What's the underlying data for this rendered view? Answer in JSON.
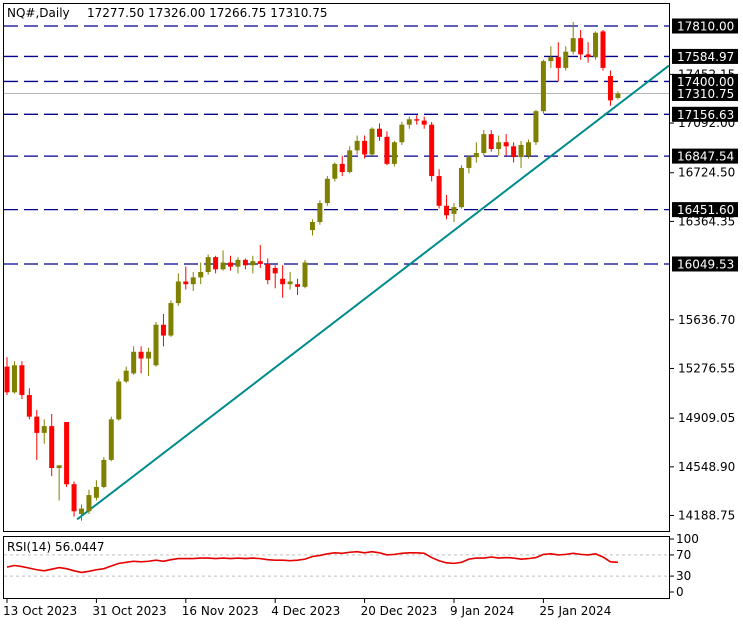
{
  "header": {
    "symbol": "NQ#,Daily",
    "ohlc": "17277.50 17326.00 17266.75 17310.75"
  },
  "rsi": {
    "label": "RSI(14) 56.0447",
    "levels": [
      100,
      70,
      30,
      0
    ],
    "level_labels": [
      "100",
      "70",
      "30",
      "0"
    ],
    "reference_lines": [
      70,
      30
    ]
  },
  "colors": {
    "bull": "#808000",
    "bear": "#ff0000",
    "trendline": "#008b8b",
    "hline": "#00008b",
    "rsi_line": "#e60000",
    "price_label_bg": "#000000"
  },
  "chart_data": {
    "type": "candlestick",
    "title": "NQ#,Daily",
    "ylim": [
      14050,
      17900
    ],
    "y_ticks": [
      14188.75,
      14548.9,
      14909.05,
      15276.55,
      15636.7,
      16364.35,
      16724.5,
      17092.0,
      17452.15
    ],
    "y_tick_labels": [
      "14188.75",
      "14548.90",
      "14909.05",
      "15276.55",
      "15636.70",
      "16364.35",
      "16724.50",
      "17092.00",
      "17452.15"
    ],
    "x_tick_labels": [
      "13 Oct 2023",
      "31 Oct 2023",
      "16 Nov 2023",
      "4 Dec 2023",
      "20 Dec 2023",
      "9 Jan 2024",
      "25 Jan 2024"
    ],
    "x_tick_index": [
      0,
      12,
      24,
      36,
      48,
      60,
      72
    ],
    "horizontal_levels": [
      {
        "value": 17810.0,
        "label": "17810.00"
      },
      {
        "value": 17584.97,
        "label": "17584.97"
      },
      {
        "value": 17400.0,
        "label": "17400.00"
      },
      {
        "value": 17156.63,
        "label": "17156.63"
      },
      {
        "value": 16847.54,
        "label": "16847.54"
      },
      {
        "value": 16451.6,
        "label": "16451.60"
      },
      {
        "value": 16049.53,
        "label": "16049.53"
      }
    ],
    "current_price": {
      "value": 17310.75,
      "label": "17310.75"
    },
    "trendline": [
      {
        "i": 9,
        "price": 14160
      },
      {
        "i": 89,
        "price": 17540
      }
    ],
    "candles": [
      {
        "o": 15290,
        "h": 15360,
        "l": 15080,
        "c": 15100
      },
      {
        "o": 15100,
        "h": 15330,
        "l": 15090,
        "c": 15300
      },
      {
        "o": 15300,
        "h": 15330,
        "l": 15050,
        "c": 15080
      },
      {
        "o": 15080,
        "h": 15130,
        "l": 14900,
        "c": 14920
      },
      {
        "o": 14920,
        "h": 14970,
        "l": 14600,
        "c": 14800
      },
      {
        "o": 14800,
        "h": 14900,
        "l": 14720,
        "c": 14850
      },
      {
        "o": 14850,
        "h": 14940,
        "l": 14480,
        "c": 14540
      },
      {
        "o": 14540,
        "h": 14560,
        "l": 14300,
        "c": 14560
      },
      {
        "o": 14880,
        "h": 14880,
        "l": 14400,
        "c": 14420
      },
      {
        "o": 14420,
        "h": 14440,
        "l": 14180,
        "c": 14220
      },
      {
        "o": 14200,
        "h": 14270,
        "l": 14150,
        "c": 14240
      },
      {
        "o": 14220,
        "h": 14380,
        "l": 14200,
        "c": 14340
      },
      {
        "o": 14320,
        "h": 14450,
        "l": 14300,
        "c": 14400
      },
      {
        "o": 14400,
        "h": 14620,
        "l": 14390,
        "c": 14600
      },
      {
        "o": 14600,
        "h": 14920,
        "l": 14590,
        "c": 14900
      },
      {
        "o": 14900,
        "h": 15200,
        "l": 14890,
        "c": 15180
      },
      {
        "o": 15180,
        "h": 15290,
        "l": 15170,
        "c": 15260
      },
      {
        "o": 15240,
        "h": 15440,
        "l": 15230,
        "c": 15400
      },
      {
        "o": 15400,
        "h": 15440,
        "l": 15240,
        "c": 15350
      },
      {
        "o": 15350,
        "h": 15430,
        "l": 15220,
        "c": 15400
      },
      {
        "o": 15300,
        "h": 15620,
        "l": 15290,
        "c": 15600
      },
      {
        "o": 15600,
        "h": 15680,
        "l": 15440,
        "c": 15520
      },
      {
        "o": 15520,
        "h": 15780,
        "l": 15510,
        "c": 15760
      },
      {
        "o": 15760,
        "h": 15980,
        "l": 15740,
        "c": 15920
      },
      {
        "o": 15920,
        "h": 16030,
        "l": 15860,
        "c": 15900
      },
      {
        "o": 15900,
        "h": 15990,
        "l": 15850,
        "c": 15950
      },
      {
        "o": 15950,
        "h": 16060,
        "l": 15900,
        "c": 15990
      },
      {
        "o": 15990,
        "h": 16120,
        "l": 15970,
        "c": 16100
      },
      {
        "o": 16100,
        "h": 16110,
        "l": 15980,
        "c": 16010
      },
      {
        "o": 16010,
        "h": 16150,
        "l": 16000,
        "c": 16060
      },
      {
        "o": 16060,
        "h": 16110,
        "l": 16000,
        "c": 16030
      },
      {
        "o": 16030,
        "h": 16100,
        "l": 15980,
        "c": 16080
      },
      {
        "o": 16080,
        "h": 16090,
        "l": 16010,
        "c": 16040
      },
      {
        "o": 16040,
        "h": 16110,
        "l": 15980,
        "c": 16070
      },
      {
        "o": 16070,
        "h": 16190,
        "l": 16020,
        "c": 16050
      },
      {
        "o": 16050,
        "h": 16090,
        "l": 15900,
        "c": 15930
      },
      {
        "o": 16020,
        "h": 16040,
        "l": 15870,
        "c": 15980
      },
      {
        "o": 15940,
        "h": 16040,
        "l": 15800,
        "c": 15900
      },
      {
        "o": 15900,
        "h": 15990,
        "l": 15860,
        "c": 15920
      },
      {
        "o": 15900,
        "h": 15940,
        "l": 15820,
        "c": 15880
      },
      {
        "o": 15880,
        "h": 16080,
        "l": 15870,
        "c": 16060
      },
      {
        "o": 16300,
        "h": 16380,
        "l": 16260,
        "c": 16360
      },
      {
        "o": 16360,
        "h": 16520,
        "l": 16340,
        "c": 16500
      },
      {
        "o": 16500,
        "h": 16700,
        "l": 16480,
        "c": 16680
      },
      {
        "o": 16680,
        "h": 16800,
        "l": 16660,
        "c": 16790
      },
      {
        "o": 16790,
        "h": 16850,
        "l": 16700,
        "c": 16730
      },
      {
        "o": 16730,
        "h": 16920,
        "l": 16720,
        "c": 16890
      },
      {
        "o": 16890,
        "h": 17000,
        "l": 16860,
        "c": 16960
      },
      {
        "o": 16960,
        "h": 17000,
        "l": 16830,
        "c": 16860
      },
      {
        "o": 16860,
        "h": 17060,
        "l": 16850,
        "c": 17050
      },
      {
        "o": 17050,
        "h": 17090,
        "l": 16960,
        "c": 16990
      },
      {
        "o": 16990,
        "h": 17030,
        "l": 16780,
        "c": 16790
      },
      {
        "o": 16790,
        "h": 16960,
        "l": 16770,
        "c": 16950
      },
      {
        "o": 16950,
        "h": 17100,
        "l": 16930,
        "c": 17080
      },
      {
        "o": 17080,
        "h": 17140,
        "l": 17050,
        "c": 17120
      },
      {
        "o": 17120,
        "h": 17150,
        "l": 17080,
        "c": 17110
      },
      {
        "o": 17110,
        "h": 17140,
        "l": 17050,
        "c": 17080
      },
      {
        "o": 17080,
        "h": 17100,
        "l": 16660,
        "c": 16700
      },
      {
        "o": 16700,
        "h": 16750,
        "l": 16460,
        "c": 16480
      },
      {
        "o": 16480,
        "h": 16560,
        "l": 16380,
        "c": 16410
      },
      {
        "o": 16420,
        "h": 16500,
        "l": 16360,
        "c": 16470
      },
      {
        "o": 16470,
        "h": 16780,
        "l": 16460,
        "c": 16760
      },
      {
        "o": 16760,
        "h": 16850,
        "l": 16720,
        "c": 16840
      },
      {
        "o": 16840,
        "h": 16950,
        "l": 16800,
        "c": 16870
      },
      {
        "o": 16870,
        "h": 17040,
        "l": 16850,
        "c": 17010
      },
      {
        "o": 17010,
        "h": 17040,
        "l": 16880,
        "c": 16900
      },
      {
        "o": 16900,
        "h": 17000,
        "l": 16850,
        "c": 16950
      },
      {
        "o": 16950,
        "h": 17010,
        "l": 16850,
        "c": 16920
      },
      {
        "o": 16920,
        "h": 16950,
        "l": 16800,
        "c": 16840
      },
      {
        "o": 16840,
        "h": 16960,
        "l": 16760,
        "c": 16930
      },
      {
        "o": 16850,
        "h": 16970,
        "l": 16830,
        "c": 16950
      },
      {
        "o": 16950,
        "h": 17190,
        "l": 16930,
        "c": 17180
      },
      {
        "o": 17180,
        "h": 17560,
        "l": 17160,
        "c": 17550
      },
      {
        "o": 17550,
        "h": 17660,
        "l": 17500,
        "c": 17580
      },
      {
        "o": 17580,
        "h": 17690,
        "l": 17400,
        "c": 17500
      },
      {
        "o": 17500,
        "h": 17660,
        "l": 17480,
        "c": 17620
      },
      {
        "o": 17620,
        "h": 17840,
        "l": 17600,
        "c": 17720
      },
      {
        "o": 17720,
        "h": 17780,
        "l": 17560,
        "c": 17600
      },
      {
        "o": 17600,
        "h": 17690,
        "l": 17540,
        "c": 17580
      },
      {
        "o": 17580,
        "h": 17770,
        "l": 17560,
        "c": 17760
      },
      {
        "o": 17770,
        "h": 17780,
        "l": 17480,
        "c": 17500
      },
      {
        "o": 17440,
        "h": 17480,
        "l": 17220,
        "c": 17260
      },
      {
        "o": 17277.5,
        "h": 17326,
        "l": 17266.75,
        "c": 17310.75
      }
    ],
    "rsi_values": [
      47,
      50,
      48,
      45,
      42,
      40,
      43,
      46,
      44,
      40,
      37,
      39,
      42,
      44,
      49,
      54,
      56,
      58,
      57,
      58,
      60,
      58,
      61,
      63,
      63,
      63,
      64,
      64,
      63,
      64,
      63,
      64,
      63,
      64,
      63,
      61,
      60,
      60,
      59,
      60,
      62,
      67,
      69,
      72,
      74,
      73,
      75,
      76,
      74,
      76,
      74,
      70,
      71,
      73,
      74,
      74,
      73,
      65,
      59,
      55,
      54,
      56,
      62,
      64,
      64,
      66,
      64,
      65,
      64,
      62,
      63,
      65,
      71,
      72,
      70,
      71,
      73,
      71,
      70,
      72,
      66,
      57,
      56.04
    ]
  }
}
